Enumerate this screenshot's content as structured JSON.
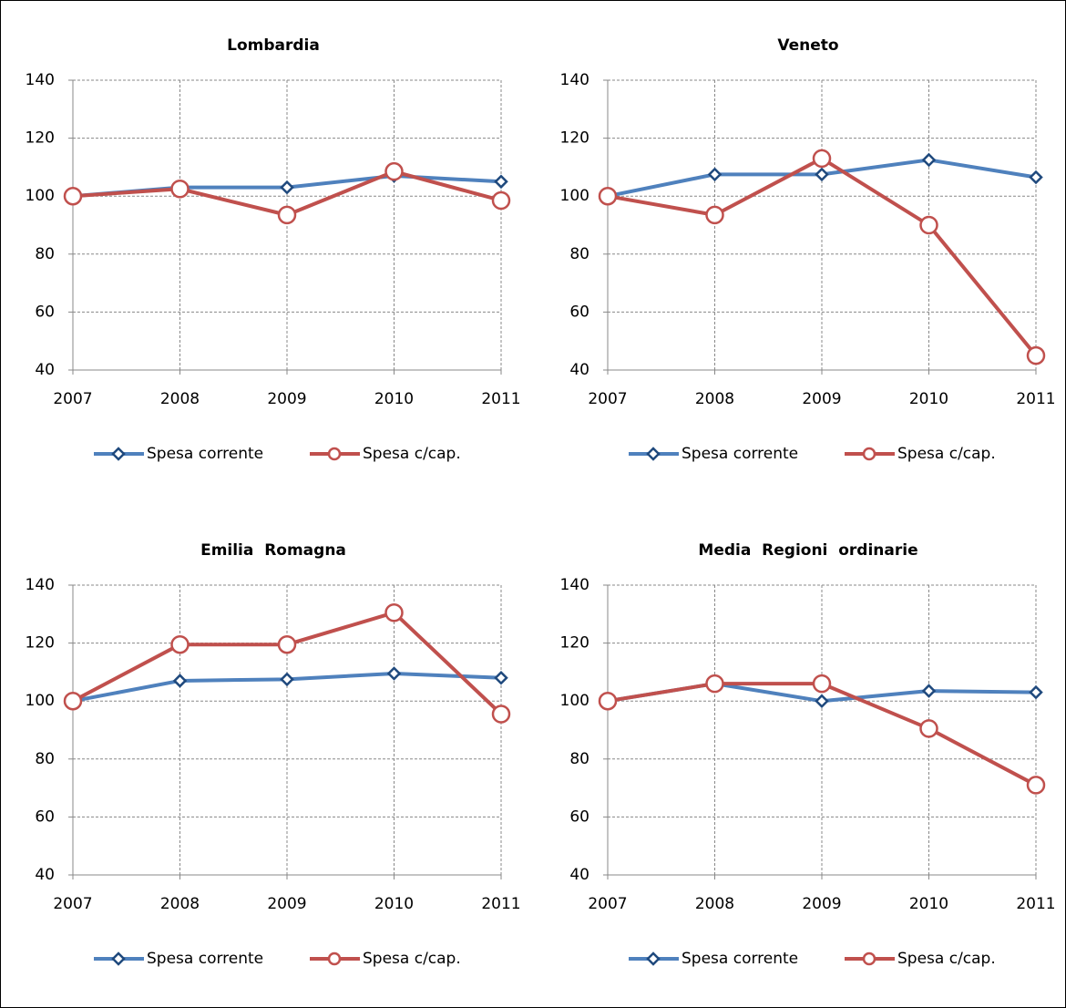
{
  "chart_data": [
    {
      "type": "line",
      "title": "Lombardia",
      "categories": [
        "2007",
        "2008",
        "2009",
        "2010",
        "2011"
      ],
      "series": [
        {
          "name": "Spesa corrente",
          "color": "#4f81bd",
          "marker": "diamond",
          "marker_edge": "#1f497d",
          "values": [
            100,
            103,
            103,
            107,
            105
          ]
        },
        {
          "name": "Spesa c/cap.",
          "color": "#c0504d",
          "marker": "circle",
          "marker_edge": "#c0504d",
          "values": [
            100,
            102.5,
            93.5,
            108.5,
            98.5
          ]
        }
      ],
      "ylim": [
        40,
        140
      ],
      "yticks": [
        40,
        60,
        80,
        100,
        120,
        140
      ],
      "grid": true,
      "legend": "bottom"
    },
    {
      "type": "line",
      "title": "Veneto",
      "categories": [
        "2007",
        "2008",
        "2009",
        "2010",
        "2011"
      ],
      "series": [
        {
          "name": "Spesa corrente",
          "color": "#4f81bd",
          "marker": "diamond",
          "marker_edge": "#1f497d",
          "values": [
            100,
            107.5,
            107.5,
            112.5,
            106.5
          ]
        },
        {
          "name": "Spesa c/cap.",
          "color": "#c0504d",
          "marker": "circle",
          "marker_edge": "#c0504d",
          "values": [
            100,
            93.5,
            113,
            90,
            45
          ]
        }
      ],
      "ylim": [
        40,
        140
      ],
      "yticks": [
        40,
        60,
        80,
        100,
        120,
        140
      ],
      "grid": true,
      "legend": "bottom"
    },
    {
      "type": "line",
      "title": "Emilia  Romagna",
      "categories": [
        "2007",
        "2008",
        "2009",
        "2010",
        "2011"
      ],
      "series": [
        {
          "name": "Spesa corrente",
          "color": "#4f81bd",
          "marker": "diamond",
          "marker_edge": "#1f497d",
          "values": [
            100,
            107,
            107.5,
            109.5,
            108
          ]
        },
        {
          "name": "Spesa c/cap.",
          "color": "#c0504d",
          "marker": "circle",
          "marker_edge": "#c0504d",
          "values": [
            100,
            119.5,
            119.5,
            130.5,
            95.5
          ]
        }
      ],
      "ylim": [
        40,
        140
      ],
      "yticks": [
        40,
        60,
        80,
        100,
        120,
        140
      ],
      "grid": true,
      "legend": "bottom"
    },
    {
      "type": "line",
      "title": "Media  Regioni  ordinarie",
      "categories": [
        "2007",
        "2008",
        "2009",
        "2010",
        "2011"
      ],
      "series": [
        {
          "name": "Spesa corrente",
          "color": "#4f81bd",
          "marker": "diamond",
          "marker_edge": "#1f497d",
          "values": [
            100,
            106,
            100,
            103.5,
            103
          ]
        },
        {
          "name": "Spesa c/cap.",
          "color": "#c0504d",
          "marker": "circle",
          "marker_edge": "#c0504d",
          "values": [
            100,
            106,
            106,
            90.5,
            71
          ]
        }
      ],
      "ylim": [
        40,
        140
      ],
      "yticks": [
        40,
        60,
        80,
        100,
        120,
        140
      ],
      "grid": true,
      "legend": "bottom"
    }
  ]
}
